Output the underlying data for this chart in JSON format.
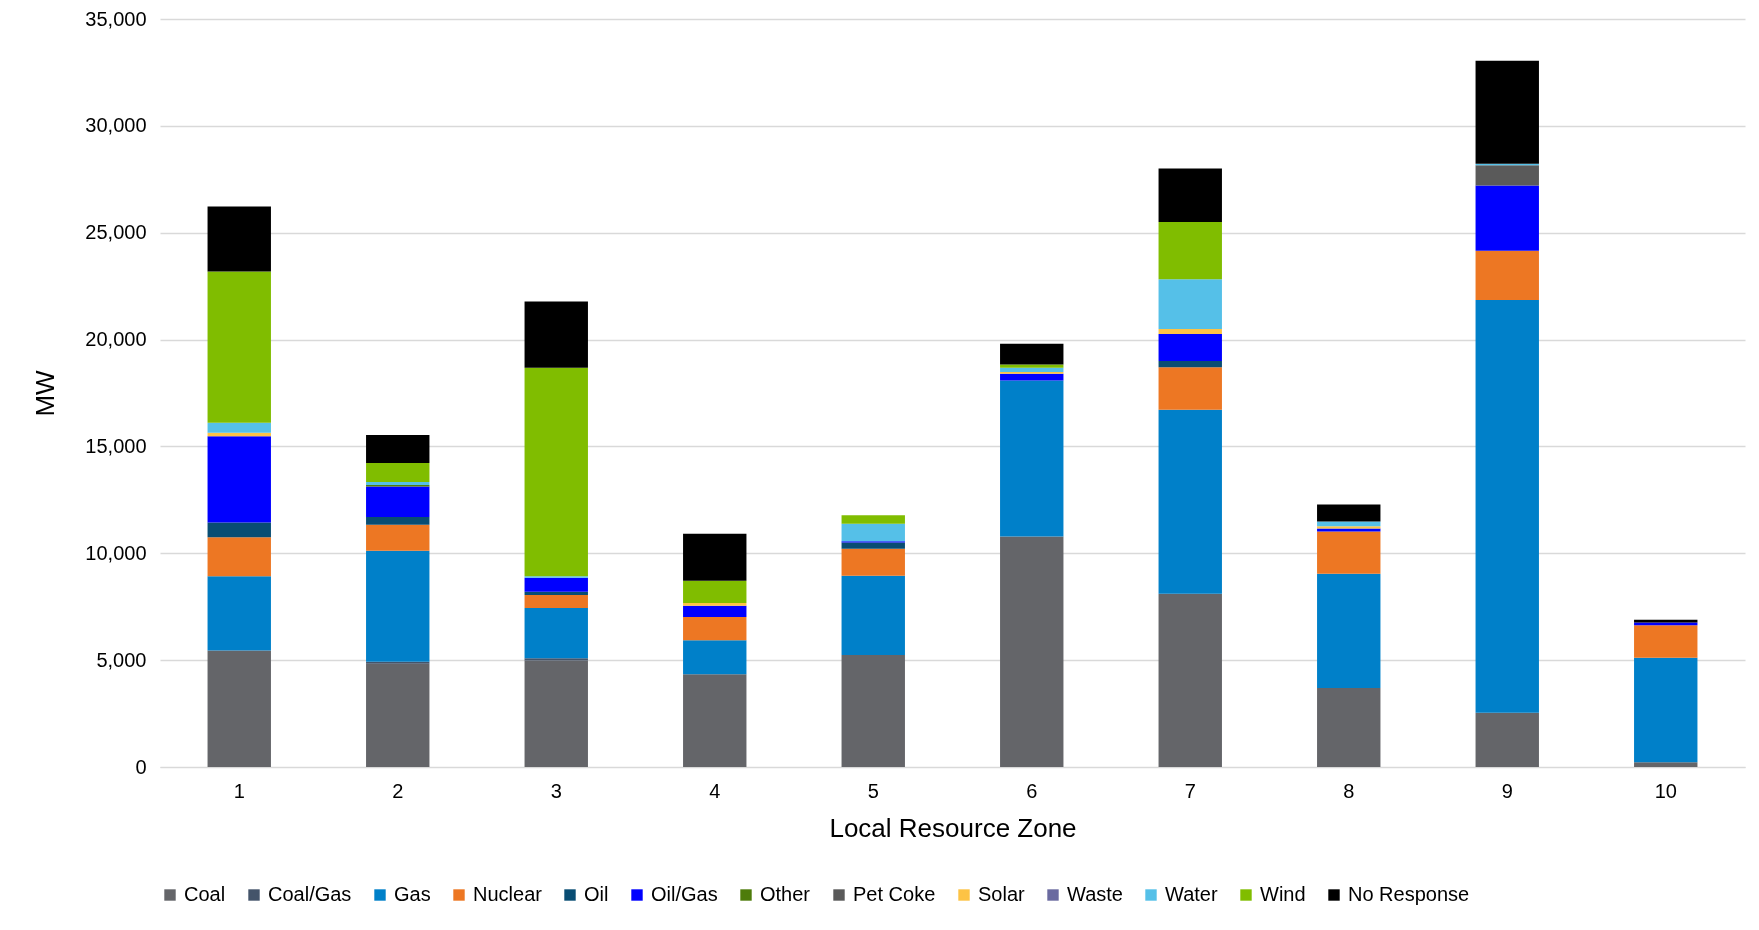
{
  "chart_data": {
    "type": "bar",
    "stacked": true,
    "xlabel": "Local Resource Zone",
    "ylabel": "MW",
    "categories": [
      "1",
      "2",
      "3",
      "4",
      "5",
      "6",
      "7",
      "8",
      "9",
      "10"
    ],
    "ylim": [
      0,
      35000
    ],
    "yticks": [
      0,
      {
        "value": 5000,
        "label": "5,000"
      },
      {
        "value": 10000,
        "label": "10,000"
      },
      {
        "value": 15000,
        "label": "15,000"
      },
      {
        "value": 20000,
        "label": "20,000"
      },
      {
        "value": 25000,
        "label": "25,000"
      },
      {
        "value": 30000,
        "label": "30,000"
      },
      {
        "value": 35000,
        "label": "35,000"
      }
    ],
    "grid": "y",
    "legend": "bottom",
    "series": [
      {
        "name": "Coal",
        "color": "#646569",
        "values": [
          5450,
          4830,
          4980,
          4340,
          5240,
          10780,
          8110,
          3700,
          2540,
          220
        ]
      },
      {
        "name": "Coal/Gas",
        "color": "#44546a",
        "values": [
          0,
          100,
          110,
          0,
          0,
          0,
          0,
          0,
          0,
          0
        ]
      },
      {
        "name": "Gas",
        "color": "#0080c9",
        "values": [
          3470,
          5190,
          2350,
          1590,
          3710,
          7300,
          8610,
          5340,
          19310,
          4890
        ]
      },
      {
        "name": "Nuclear",
        "color": "#ed7723",
        "values": [
          1830,
          1210,
          610,
          1090,
          1260,
          0,
          1980,
          1980,
          2310,
          1520
        ]
      },
      {
        "name": "Oil",
        "color": "#084d73",
        "values": [
          690,
          370,
          150,
          0,
          300,
          0,
          300,
          0,
          0,
          0
        ]
      },
      {
        "name": "Oil/Gas",
        "color": "#0000ff",
        "values": [
          4040,
          1420,
          650,
          530,
          50,
          320,
          1260,
          140,
          3050,
          130
        ]
      },
      {
        "name": "Other",
        "color": "#4e7c0b",
        "values": [
          0,
          80,
          0,
          0,
          0,
          0,
          0,
          0,
          0,
          0
        ]
      },
      {
        "name": "Pet Coke",
        "color": "#5a5a5a",
        "values": [
          0,
          0,
          0,
          0,
          0,
          0,
          0,
          0,
          950,
          0
        ]
      },
      {
        "name": "Solar",
        "color": "#fdc345",
        "values": [
          160,
          0,
          0,
          120,
          0,
          80,
          230,
          100,
          0,
          0
        ]
      },
      {
        "name": "Waste",
        "color": "#6a6aa0",
        "values": [
          0,
          0,
          0,
          0,
          0,
          0,
          0,
          0,
          0,
          0
        ]
      },
      {
        "name": "Water",
        "color": "#55c0e8",
        "values": [
          470,
          130,
          80,
          0,
          820,
          200,
          2330,
          230,
          70,
          0
        ]
      },
      {
        "name": "Wind",
        "color": "#80bd00",
        "values": [
          7080,
          890,
          9750,
          1040,
          400,
          150,
          2680,
          0,
          0,
          0
        ]
      },
      {
        "name": "No Response",
        "color": "#000000",
        "values": [
          3040,
          1310,
          3100,
          2200,
          0,
          970,
          2500,
          790,
          4820,
          130
        ]
      }
    ]
  }
}
